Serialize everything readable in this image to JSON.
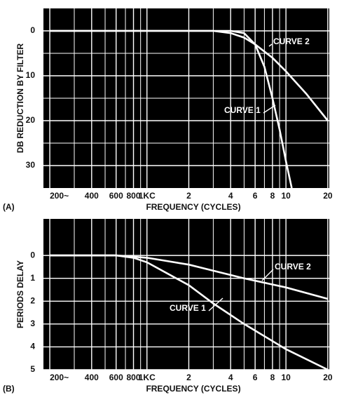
{
  "chart_data": [
    {
      "type": "line",
      "panel_label": "(A)",
      "xlabel": "FREQUENCY (CYCLES)",
      "ylabel": "DB REDUCTION BY FILTER",
      "xscale": "log",
      "xlim": [
        180,
        20500
      ],
      "xticks": [
        {
          "value": 200,
          "label": "200~"
        },
        400,
        600,
        800,
        {
          "value": 1000,
          "label": "1KC"
        },
        {
          "value": 2000,
          "label": "2"
        },
        {
          "value": 4000,
          "label": "4"
        },
        {
          "value": 6000,
          "label": "6"
        },
        {
          "value": 8000,
          "label": "8"
        },
        {
          "value": 10000,
          "label": "10"
        },
        {
          "value": 20000,
          "label": "20"
        }
      ],
      "xminor": [
        300,
        500,
        700,
        900,
        3000,
        5000,
        7000,
        9000
      ],
      "ylim": [
        -5,
        35
      ],
      "y_inverted": true,
      "yticks": [
        0,
        10,
        20,
        30
      ],
      "yminor": [
        5,
        15,
        25
      ],
      "grid": true,
      "background": "#000000",
      "series": [
        {
          "name": "CURVE 1",
          "color": "#ffffff",
          "x": [
            200,
            4000,
            5000,
            6000,
            7000,
            8000,
            9000,
            10000,
            11000
          ],
          "values": [
            0,
            0,
            0.5,
            3,
            8,
            15,
            22,
            29,
            35
          ]
        },
        {
          "name": "CURVE 2",
          "color": "#ffffff",
          "x": [
            200,
            3000,
            4000,
            5000,
            6000,
            8000,
            10000,
            14000,
            20000
          ],
          "values": [
            0,
            0,
            0.5,
            1.5,
            3,
            6,
            9,
            14,
            20
          ]
        }
      ]
    },
    {
      "type": "line",
      "panel_label": "(B)",
      "xlabel": "FREQUENCY (CYCLES)",
      "ylabel": "PERIODS DELAY",
      "xscale": "log",
      "xlim": [
        180,
        20500
      ],
      "xticks": [
        {
          "value": 200,
          "label": "200~"
        },
        400,
        600,
        800,
        {
          "value": 1000,
          "label": "1KC"
        },
        {
          "value": 2000,
          "label": "2"
        },
        {
          "value": 4000,
          "label": "4"
        },
        {
          "value": 6000,
          "label": "6"
        },
        {
          "value": 8000,
          "label": "8"
        },
        {
          "value": 10000,
          "label": "10"
        },
        {
          "value": 20000,
          "label": "20"
        }
      ],
      "xminor": [
        300,
        500,
        700,
        900,
        3000,
        5000,
        7000,
        9000
      ],
      "ylim": [
        -1.6,
        5
      ],
      "y_inverted": true,
      "yticks": [
        0,
        1,
        2,
        3,
        4,
        5
      ],
      "grid": true,
      "background": "#000000",
      "series": [
        {
          "name": "CURVE 1",
          "color": "#ffffff",
          "x": [
            200,
            600,
            800,
            1000,
            2000,
            3000,
            5000,
            10000,
            20000
          ],
          "values": [
            0,
            0,
            0.1,
            0.3,
            1.3,
            2.1,
            3,
            4.1,
            5
          ]
        },
        {
          "name": "CURVE 2",
          "color": "#ffffff",
          "x": [
            200,
            600,
            1000,
            2000,
            5000,
            10000,
            20000
          ],
          "values": [
            0,
            0,
            0.1,
            0.4,
            1.0,
            1.4,
            1.9
          ]
        }
      ]
    }
  ]
}
